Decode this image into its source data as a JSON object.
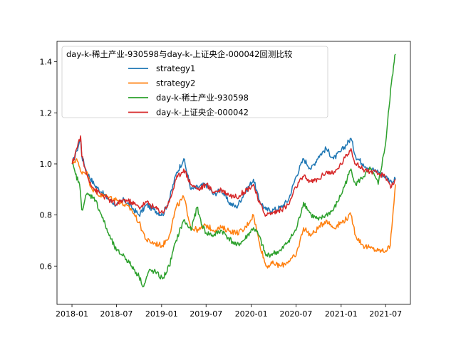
{
  "chart_data": {
    "type": "line",
    "title": "",
    "xlabel": "",
    "ylabel": "",
    "grid": false,
    "x_range": [
      "2017-11-01",
      "2021-10-10"
    ],
    "ylim": [
      0.45,
      1.48
    ],
    "x_ticks": [
      "2018-01",
      "2018-07",
      "2019-01",
      "2019-07",
      "2020-01",
      "2020-07",
      "2021-01",
      "2021-07"
    ],
    "y_ticks": [
      "0.6",
      "0.8",
      "1.0",
      "1.2",
      "1.4"
    ],
    "legend": {
      "placement": "upper-left",
      "title": "day-k-稀土产业-930598与day-k-上证央企-000042回测比较"
    },
    "series": [
      {
        "name": "strategy1",
        "color": "#1f77b4",
        "points": [
          [
            "2018-01-02",
            1.0
          ],
          [
            "2018-01-20",
            1.05
          ],
          [
            "2018-02-05",
            1.1
          ],
          [
            "2018-02-10",
            1.03
          ],
          [
            "2018-03-01",
            0.97
          ],
          [
            "2018-04-01",
            0.92
          ],
          [
            "2018-05-01",
            0.89
          ],
          [
            "2018-06-01",
            0.86
          ],
          [
            "2018-07-01",
            0.84
          ],
          [
            "2018-08-01",
            0.86
          ],
          [
            "2018-09-01",
            0.83
          ],
          [
            "2018-10-01",
            0.8
          ],
          [
            "2018-11-01",
            0.84
          ],
          [
            "2018-12-01",
            0.82
          ],
          [
            "2019-01-05",
            0.8
          ],
          [
            "2019-02-01",
            0.86
          ],
          [
            "2019-03-01",
            0.96
          ],
          [
            "2019-04-01",
            1.02
          ],
          [
            "2019-05-01",
            0.9
          ],
          [
            "2019-06-01",
            0.91
          ],
          [
            "2019-07-01",
            0.92
          ],
          [
            "2019-08-01",
            0.88
          ],
          [
            "2019-09-01",
            0.9
          ],
          [
            "2019-10-01",
            0.85
          ],
          [
            "2019-11-01",
            0.83
          ],
          [
            "2019-12-01",
            0.88
          ],
          [
            "2020-01-10",
            0.94
          ],
          [
            "2020-02-01",
            0.86
          ],
          [
            "2020-03-01",
            0.82
          ],
          [
            "2020-04-01",
            0.82
          ],
          [
            "2020-05-01",
            0.83
          ],
          [
            "2020-06-01",
            0.86
          ],
          [
            "2020-07-01",
            0.95
          ],
          [
            "2020-08-01",
            1.02
          ],
          [
            "2020-09-01",
            0.98
          ],
          [
            "2020-10-01",
            1.03
          ],
          [
            "2020-11-01",
            1.06
          ],
          [
            "2020-12-01",
            1.02
          ],
          [
            "2021-01-01",
            1.05
          ],
          [
            "2021-02-10",
            1.1
          ],
          [
            "2021-03-01",
            1.03
          ],
          [
            "2021-04-01",
            1.0
          ],
          [
            "2021-05-01",
            0.98
          ],
          [
            "2021-06-01",
            0.97
          ],
          [
            "2021-07-01",
            0.95
          ],
          [
            "2021-07-25",
            0.93
          ],
          [
            "2021-08-10",
            0.94
          ]
        ]
      },
      {
        "name": "strategy2",
        "color": "#ff7f0e",
        "points": [
          [
            "2018-01-02",
            1.0
          ],
          [
            "2018-01-20",
            1.02
          ],
          [
            "2018-02-05",
            0.97
          ],
          [
            "2018-03-01",
            0.97
          ],
          [
            "2018-03-20",
            0.91
          ],
          [
            "2018-04-15",
            0.88
          ],
          [
            "2018-06-01",
            0.87
          ],
          [
            "2018-07-01",
            0.86
          ],
          [
            "2018-08-01",
            0.84
          ],
          [
            "2018-09-01",
            0.82
          ],
          [
            "2018-10-01",
            0.77
          ],
          [
            "2018-11-01",
            0.7
          ],
          [
            "2018-12-01",
            0.69
          ],
          [
            "2019-01-05",
            0.68
          ],
          [
            "2019-02-01",
            0.72
          ],
          [
            "2019-03-01",
            0.83
          ],
          [
            "2019-04-01",
            0.87
          ],
          [
            "2019-05-01",
            0.75
          ],
          [
            "2019-06-01",
            0.74
          ],
          [
            "2019-07-01",
            0.76
          ],
          [
            "2019-08-01",
            0.74
          ],
          [
            "2019-09-01",
            0.75
          ],
          [
            "2019-10-01",
            0.74
          ],
          [
            "2019-11-01",
            0.73
          ],
          [
            "2019-12-01",
            0.74
          ],
          [
            "2020-01-10",
            0.8
          ],
          [
            "2020-02-01",
            0.7
          ],
          [
            "2020-03-01",
            0.6
          ],
          [
            "2020-04-01",
            0.61
          ],
          [
            "2020-05-01",
            0.6
          ],
          [
            "2020-06-01",
            0.62
          ],
          [
            "2020-07-01",
            0.64
          ],
          [
            "2020-08-01",
            0.75
          ],
          [
            "2020-09-01",
            0.72
          ],
          [
            "2020-10-01",
            0.75
          ],
          [
            "2020-11-01",
            0.78
          ],
          [
            "2020-12-01",
            0.75
          ],
          [
            "2021-01-01",
            0.77
          ],
          [
            "2021-02-10",
            0.8
          ],
          [
            "2021-03-01",
            0.72
          ],
          [
            "2021-04-01",
            0.68
          ],
          [
            "2021-05-01",
            0.67
          ],
          [
            "2021-06-01",
            0.66
          ],
          [
            "2021-07-01",
            0.66
          ],
          [
            "2021-07-20",
            0.68
          ],
          [
            "2021-08-01",
            0.82
          ],
          [
            "2021-08-10",
            0.92
          ]
        ]
      },
      {
        "name": "day-k-稀土产业-930598",
        "color": "#2ca02c",
        "points": [
          [
            "2018-01-02",
            1.0
          ],
          [
            "2018-01-15",
            0.96
          ],
          [
            "2018-02-01",
            0.92
          ],
          [
            "2018-02-10",
            0.82
          ],
          [
            "2018-03-01",
            0.88
          ],
          [
            "2018-04-01",
            0.87
          ],
          [
            "2018-05-01",
            0.8
          ],
          [
            "2018-06-01",
            0.72
          ],
          [
            "2018-07-01",
            0.66
          ],
          [
            "2018-08-01",
            0.64
          ],
          [
            "2018-09-01",
            0.6
          ],
          [
            "2018-10-01",
            0.56
          ],
          [
            "2018-10-20",
            0.52
          ],
          [
            "2018-11-10",
            0.58
          ],
          [
            "2018-12-01",
            0.58
          ],
          [
            "2019-01-05",
            0.55
          ],
          [
            "2019-02-01",
            0.6
          ],
          [
            "2019-03-01",
            0.7
          ],
          [
            "2019-04-01",
            0.78
          ],
          [
            "2019-05-01",
            0.74
          ],
          [
            "2019-05-25",
            0.83
          ],
          [
            "2019-06-15",
            0.76
          ],
          [
            "2019-07-01",
            0.73
          ],
          [
            "2019-08-01",
            0.72
          ],
          [
            "2019-09-01",
            0.74
          ],
          [
            "2019-10-01",
            0.71
          ],
          [
            "2019-11-01",
            0.68
          ],
          [
            "2019-12-01",
            0.7
          ],
          [
            "2020-01-10",
            0.75
          ],
          [
            "2020-02-01",
            0.72
          ],
          [
            "2020-03-01",
            0.64
          ],
          [
            "2020-04-01",
            0.65
          ],
          [
            "2020-05-01",
            0.66
          ],
          [
            "2020-06-01",
            0.7
          ],
          [
            "2020-07-01",
            0.74
          ],
          [
            "2020-08-01",
            0.85
          ],
          [
            "2020-09-01",
            0.8
          ],
          [
            "2020-10-01",
            0.78
          ],
          [
            "2020-11-01",
            0.8
          ],
          [
            "2020-12-01",
            0.82
          ],
          [
            "2021-01-01",
            0.88
          ],
          [
            "2021-02-10",
            0.98
          ],
          [
            "2021-03-01",
            0.92
          ],
          [
            "2021-04-01",
            0.95
          ],
          [
            "2021-05-01",
            0.98
          ],
          [
            "2021-06-01",
            0.92
          ],
          [
            "2021-07-01",
            1.08
          ],
          [
            "2021-07-15",
            1.22
          ],
          [
            "2021-07-25",
            1.32
          ],
          [
            "2021-08-05",
            1.4
          ],
          [
            "2021-08-10",
            1.43
          ]
        ]
      },
      {
        "name": "day-k-上证央企-000042",
        "color": "#d62728",
        "points": [
          [
            "2018-01-02",
            1.0
          ],
          [
            "2018-01-20",
            1.06
          ],
          [
            "2018-02-05",
            1.11
          ],
          [
            "2018-02-10",
            1.03
          ],
          [
            "2018-03-01",
            0.96
          ],
          [
            "2018-04-01",
            0.9
          ],
          [
            "2018-05-01",
            0.88
          ],
          [
            "2018-06-01",
            0.86
          ],
          [
            "2018-07-01",
            0.84
          ],
          [
            "2018-08-01",
            0.86
          ],
          [
            "2018-09-01",
            0.85
          ],
          [
            "2018-10-01",
            0.83
          ],
          [
            "2018-11-01",
            0.85
          ],
          [
            "2018-12-01",
            0.83
          ],
          [
            "2019-01-05",
            0.81
          ],
          [
            "2019-02-01",
            0.85
          ],
          [
            "2019-03-01",
            0.94
          ],
          [
            "2019-04-01",
            0.98
          ],
          [
            "2019-05-01",
            0.92
          ],
          [
            "2019-06-01",
            0.9
          ],
          [
            "2019-07-01",
            0.92
          ],
          [
            "2019-08-01",
            0.89
          ],
          [
            "2019-09-01",
            0.9
          ],
          [
            "2019-10-01",
            0.88
          ],
          [
            "2019-11-01",
            0.87
          ],
          [
            "2019-12-01",
            0.89
          ],
          [
            "2020-01-10",
            0.92
          ],
          [
            "2020-02-01",
            0.85
          ],
          [
            "2020-03-01",
            0.8
          ],
          [
            "2020-04-01",
            0.81
          ],
          [
            "2020-05-01",
            0.82
          ],
          [
            "2020-06-01",
            0.84
          ],
          [
            "2020-07-01",
            0.91
          ],
          [
            "2020-08-01",
            0.95
          ],
          [
            "2020-09-01",
            0.93
          ],
          [
            "2020-10-01",
            0.94
          ],
          [
            "2020-11-01",
            0.97
          ],
          [
            "2020-12-01",
            0.96
          ],
          [
            "2021-01-01",
            1.0
          ],
          [
            "2021-02-10",
            1.06
          ],
          [
            "2021-03-01",
            1.0
          ],
          [
            "2021-04-01",
            0.98
          ],
          [
            "2021-05-01",
            0.97
          ],
          [
            "2021-06-01",
            0.96
          ],
          [
            "2021-07-01",
            0.95
          ],
          [
            "2021-07-25",
            0.91
          ],
          [
            "2021-08-10",
            0.94
          ]
        ]
      }
    ]
  }
}
